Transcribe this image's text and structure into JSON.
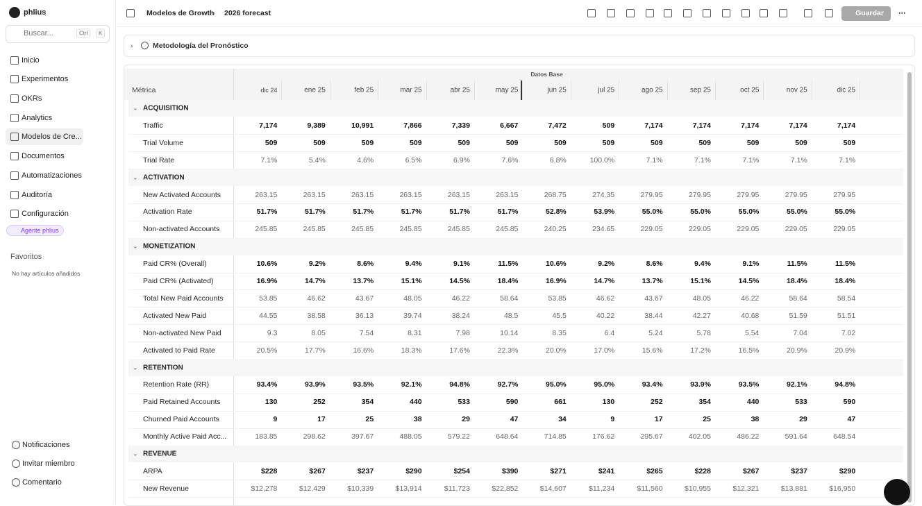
{
  "sidebar": {
    "workspace": "phlius",
    "search": "Buscar...",
    "shortcut": [
      "Ctrl",
      "K"
    ],
    "nav": [
      "Inicio",
      "Experimentos",
      "OKRs",
      "Analytics",
      "Modelos de Cre...",
      "Documentos",
      "Automatizaciones",
      "Auditoría",
      "Configuración"
    ],
    "agent": "Agente phlius",
    "favorites_title": "Favoritos",
    "favorites_empty": "No hay artículos añadidos",
    "footer": [
      "Notificaciones",
      "Invitar miembro",
      "Comentario"
    ]
  },
  "header": {
    "breadcrumb": [
      "Modelos de Growth",
      "2026 forecast"
    ],
    "save": "Guardar"
  },
  "methodology": "Metodología del Pronóstico",
  "table": {
    "group_label": "Datos Base",
    "metric_header": "Métrica",
    "columns": [
      "dic 24",
      "ene 25",
      "feb 25",
      "mar 25",
      "abr 25",
      "may 25",
      "jun 25",
      "jul 25",
      "ago 25",
      "sep 25",
      "oct 25",
      "nov 25",
      "dic 25"
    ],
    "sections": [
      {
        "name": "ACQUISITION",
        "rows": [
          {
            "label": "Traffic",
            "values": [
              "7,174",
              "9,389",
              "10,991",
              "7,866",
              "7,339",
              "6,667",
              "7,472",
              "509",
              "7,174",
              "7,174",
              "7,174",
              "7,174",
              "7,174"
            ]
          },
          {
            "label": "Trial Volume",
            "values": [
              "509",
              "509",
              "509",
              "509",
              "509",
              "509",
              "509",
              "509",
              "509",
              "509",
              "509",
              "509",
              "509"
            ]
          },
          {
            "label": "Trial Rate",
            "values": [
              "7.1%",
              "5.4%",
              "4.6%",
              "6.5%",
              "6.9%",
              "7.6%",
              "6.8%",
              "100.0%",
              "7.1%",
              "7.1%",
              "7.1%",
              "7.1%",
              "7.1%"
            ]
          }
        ]
      },
      {
        "name": "ACTIVATION",
        "rows": [
          {
            "label": "New Activated Accounts",
            "values": [
              "263.15",
              "263.15",
              "263.15",
              "263.15",
              "263.15",
              "263.15",
              "268.75",
              "274.35",
              "279.95",
              "279.95",
              "279.95",
              "279.95",
              "279.95"
            ]
          },
          {
            "label": "Activation Rate",
            "values": [
              "51.7%",
              "51.7%",
              "51.7%",
              "51.7%",
              "51.7%",
              "51.7%",
              "52.8%",
              "53.9%",
              "55.0%",
              "55.0%",
              "55.0%",
              "55.0%",
              "55.0%"
            ]
          },
          {
            "label": "Non-activated Accounts",
            "values": [
              "245.85",
              "245.85",
              "245.85",
              "245.85",
              "245.85",
              "245.85",
              "240.25",
              "234.65",
              "229.05",
              "229.05",
              "229.05",
              "229.05",
              "229.05"
            ]
          }
        ]
      },
      {
        "name": "MONETIZATION",
        "rows": [
          {
            "label": "Paid CR% (Overall)",
            "values": [
              "10.6%",
              "9.2%",
              "8.6%",
              "9.4%",
              "9.1%",
              "11.5%",
              "10.6%",
              "9.2%",
              "8.6%",
              "9.4%",
              "9.1%",
              "11.5%",
              "11.5%"
            ]
          },
          {
            "label": "Paid CR% (Activated)",
            "values": [
              "16.9%",
              "14.7%",
              "13.7%",
              "15.1%",
              "14.5%",
              "18.4%",
              "16.9%",
              "14.7%",
              "13.7%",
              "15.1%",
              "14.5%",
              "18.4%",
              "18.4%"
            ]
          },
          {
            "label": "Total New Paid Accounts",
            "values": [
              "53.85",
              "46.62",
              "43.67",
              "48.05",
              "46.22",
              "58.64",
              "53.85",
              "46.62",
              "43.67",
              "48.05",
              "46.22",
              "58.64",
              "58.54"
            ]
          },
          {
            "label": "Activated New Paid",
            "values": [
              "44.55",
              "38.58",
              "36.13",
              "39.74",
              "38.24",
              "48.5",
              "45.5",
              "40.22",
              "38.44",
              "42.27",
              "40.68",
              "51.59",
              "51.51"
            ]
          },
          {
            "label": "Non-activated New Paid",
            "values": [
              "9.3",
              "8.05",
              "7.54",
              "8.31",
              "7.98",
              "10.14",
              "8.35",
              "6.4",
              "5.24",
              "5.78",
              "5.54",
              "7.04",
              "7.02"
            ]
          },
          {
            "label": "Activated to Paid Rate",
            "values": [
              "20.5%",
              "17.7%",
              "16.6%",
              "18.3%",
              "17.6%",
              "22.3%",
              "20.0%",
              "17.0%",
              "15.6%",
              "17.2%",
              "16.5%",
              "20.9%",
              "20.9%"
            ]
          }
        ]
      },
      {
        "name": "RETENTION",
        "rows": [
          {
            "label": "Retention Rate (RR)",
            "values": [
              "93.4%",
              "93.9%",
              "93.5%",
              "92.1%",
              "94.8%",
              "92.7%",
              "95.0%",
              "95.0%",
              "93.4%",
              "93.9%",
              "93.5%",
              "92.1%",
              "94.8%"
            ]
          },
          {
            "label": "Paid Retained Accounts",
            "values": [
              "130",
              "252",
              "354",
              "440",
              "533",
              "590",
              "661",
              "130",
              "252",
              "354",
              "440",
              "533",
              "590"
            ]
          },
          {
            "label": "Churned Paid Accounts",
            "values": [
              "9",
              "17",
              "25",
              "38",
              "29",
              "47",
              "34",
              "9",
              "17",
              "25",
              "38",
              "29",
              "47"
            ]
          },
          {
            "label": "Monthly Active Paid Acc...",
            "values": [
              "183.85",
              "298.62",
              "397.67",
              "488.05",
              "579.22",
              "648.64",
              "714.85",
              "176.62",
              "295.67",
              "402.05",
              "486.22",
              "591.64",
              "648.54"
            ]
          }
        ]
      },
      {
        "name": "REVENUE",
        "rows": [
          {
            "label": "ARPA",
            "values": [
              "$228",
              "$267",
              "$237",
              "$290",
              "$254",
              "$390",
              "$271",
              "$241",
              "$265",
              "$228",
              "$267",
              "$237",
              "$290"
            ]
          },
          {
            "label": "New Revenue",
            "values": [
              "$12,278",
              "$12,429",
              "$10,339",
              "$13,914",
              "$11,723",
              "$22,852",
              "$14,607",
              "$11,234",
              "$11,560",
              "$10,955",
              "$12,321",
              "$13,881",
              "$16,950"
            ]
          }
        ]
      }
    ]
  }
}
